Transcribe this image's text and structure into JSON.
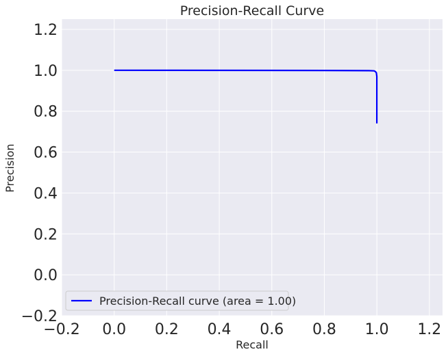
{
  "chart_data": {
    "type": "line",
    "title": "Precision-Recall Curve",
    "xlabel": "Recall",
    "ylabel": "Precision",
    "xlim": [
      -0.2,
      1.25
    ],
    "ylim": [
      -0.2,
      1.25
    ],
    "xticks": [
      -0.2,
      0.0,
      0.2,
      0.4,
      0.6,
      0.8,
      1.0,
      1.2
    ],
    "yticks": [
      -0.2,
      0.0,
      0.2,
      0.4,
      0.6,
      0.8,
      1.0,
      1.2
    ],
    "xtick_labels": [
      "−0.2",
      "0.0",
      "0.2",
      "0.4",
      "0.6",
      "0.8",
      "1.0",
      "1.2"
    ],
    "ytick_labels": [
      "−0.2",
      "0.0",
      "0.2",
      "0.4",
      "0.6",
      "0.8",
      "1.0",
      "1.2"
    ],
    "grid": true,
    "legend_position": "lower-left",
    "series": [
      {
        "name": "Precision-Recall curve (area = 1.00)",
        "color": "#0000ff",
        "x": [
          0.0,
          0.8,
          0.97,
          0.99,
          0.995,
          0.998,
          1.0,
          1.0
        ],
        "y": [
          1.0,
          0.999,
          0.998,
          0.997,
          0.993,
          0.988,
          0.97,
          0.74
        ]
      }
    ]
  }
}
